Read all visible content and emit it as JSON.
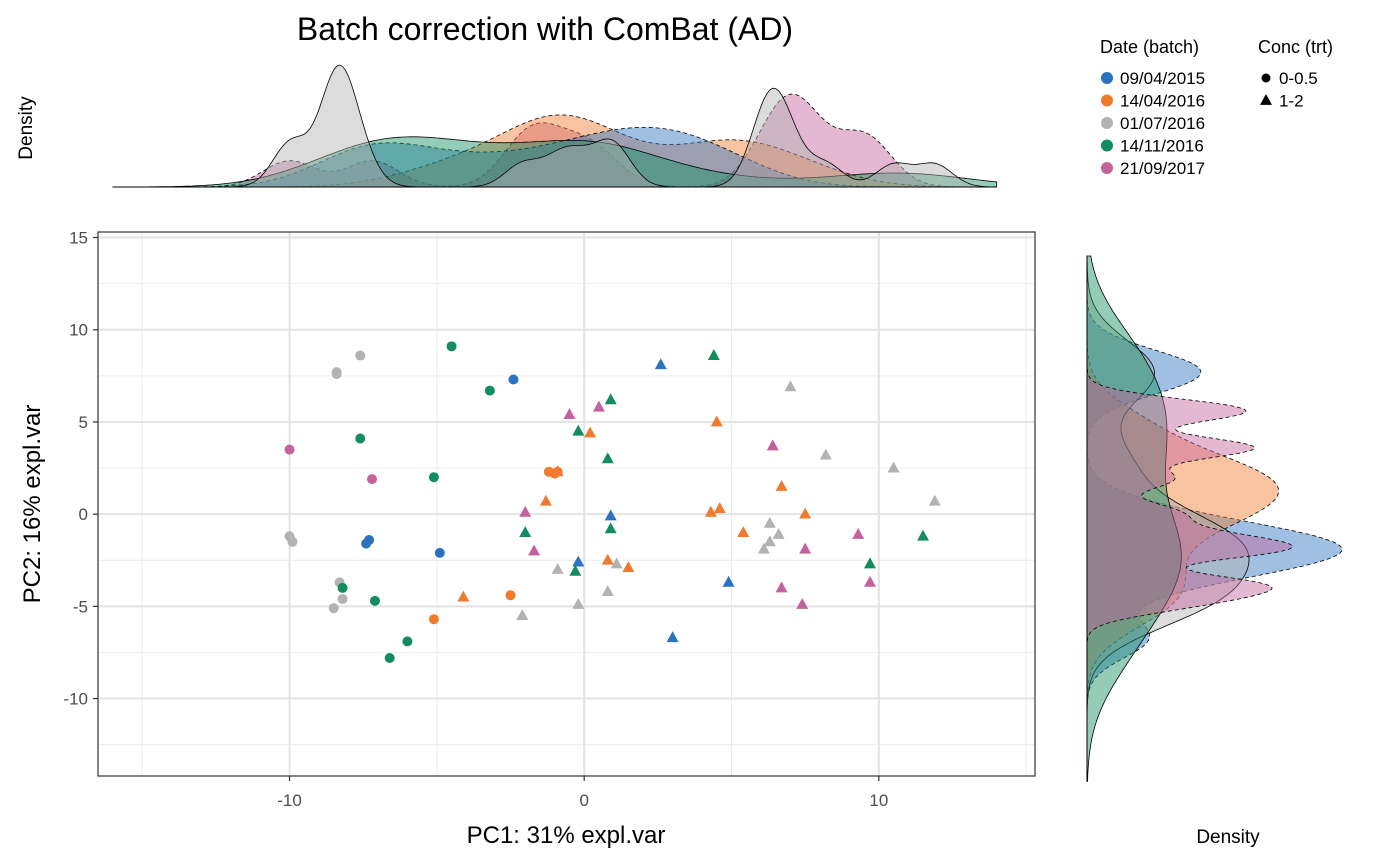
{
  "chart_data": {
    "type": "scatter",
    "title": "Batch correction with ComBat (AD)",
    "xlabel": "PC1: 31% expl.var",
    "ylabel": "PC2: 16% expl.var",
    "xlim": [
      -16.5,
      15.3
    ],
    "ylim": [
      -14.2,
      15.3
    ],
    "xticks": [
      -10,
      0,
      10
    ],
    "xtick_labels": [
      "-10",
      "0",
      "10"
    ],
    "yticks": [
      -10,
      -5,
      0,
      5,
      10,
      15
    ],
    "ytick_labels": [
      "-10",
      "-5",
      "0",
      "5",
      "10",
      "15"
    ],
    "grid": true,
    "legend_position": "top-right",
    "top_density_label": "Density",
    "right_density_label": "Density",
    "color_legend": {
      "title": "Date (batch)",
      "entries": [
        {
          "label": "09/04/2015",
          "color": "#2b73c1"
        },
        {
          "label": "14/04/2016",
          "color": "#ee7b2e"
        },
        {
          "label": "01/07/2016",
          "color": "#b2b2b2"
        },
        {
          "label": "14/11/2016",
          "color": "#138d5f"
        },
        {
          "label": "21/09/2017",
          "color": "#c4629c"
        }
      ]
    },
    "shape_legend": {
      "title": "Conc (trt)",
      "entries": [
        {
          "label": "0-0.5",
          "shape": "circle"
        },
        {
          "label": "1-2",
          "shape": "triangle"
        }
      ]
    },
    "series": [
      {
        "batch": 0,
        "shape": "circle",
        "points": [
          [
            -2.4,
            7.3
          ],
          [
            -7.3,
            -1.4
          ],
          [
            -7.4,
            -1.6
          ],
          [
            -4.9,
            -2.1
          ]
        ]
      },
      {
        "batch": 0,
        "shape": "triangle",
        "points": [
          [
            2.6,
            8.1
          ],
          [
            0.9,
            -0.1
          ],
          [
            -0.2,
            -2.6
          ],
          [
            4.9,
            -3.7
          ],
          [
            3.0,
            -6.7
          ]
        ]
      },
      {
        "batch": 1,
        "shape": "circle",
        "points": [
          [
            -1.2,
            2.3
          ],
          [
            -0.9,
            2.3
          ],
          [
            -1.0,
            2.2
          ],
          [
            -5.1,
            -5.7
          ],
          [
            -2.5,
            -4.4
          ]
        ]
      },
      {
        "batch": 1,
        "shape": "triangle",
        "points": [
          [
            0.2,
            4.4
          ],
          [
            -0.9,
            2.3
          ],
          [
            -1.3,
            0.7
          ],
          [
            4.5,
            5.0
          ],
          [
            6.7,
            1.5
          ],
          [
            4.6,
            0.3
          ],
          [
            4.3,
            0.1
          ],
          [
            7.5,
            0.0
          ],
          [
            5.4,
            -1.0
          ],
          [
            0.8,
            -2.5
          ],
          [
            1.5,
            -2.9
          ],
          [
            -4.1,
            -4.5
          ]
        ]
      },
      {
        "batch": 2,
        "shape": "circle",
        "points": [
          [
            -7.6,
            8.6
          ],
          [
            -8.4,
            7.7
          ],
          [
            -8.4,
            7.6
          ],
          [
            -10.0,
            -1.2
          ],
          [
            -9.9,
            -1.5
          ],
          [
            -8.3,
            -3.7
          ],
          [
            -8.2,
            -4.6
          ],
          [
            -8.5,
            -5.1
          ]
        ]
      },
      {
        "batch": 2,
        "shape": "triangle",
        "points": [
          [
            7.0,
            6.9
          ],
          [
            8.2,
            3.2
          ],
          [
            10.5,
            2.5
          ],
          [
            11.9,
            0.7
          ],
          [
            6.3,
            -0.5
          ],
          [
            6.6,
            -1.1
          ],
          [
            6.3,
            -1.5
          ],
          [
            6.1,
            -1.9
          ],
          [
            1.1,
            -2.7
          ],
          [
            -0.9,
            -3.0
          ],
          [
            0.8,
            -4.2
          ],
          [
            -0.2,
            -4.9
          ],
          [
            -2.1,
            -5.5
          ]
        ]
      },
      {
        "batch": 3,
        "shape": "circle",
        "points": [
          [
            -4.5,
            9.1
          ],
          [
            -3.2,
            6.7
          ],
          [
            -7.6,
            4.1
          ],
          [
            -5.1,
            2.0
          ],
          [
            -8.2,
            -4.0
          ],
          [
            -7.1,
            -4.7
          ],
          [
            -6.0,
            -6.9
          ],
          [
            -6.6,
            -7.8
          ]
        ]
      },
      {
        "batch": 3,
        "shape": "triangle",
        "points": [
          [
            4.4,
            8.6
          ],
          [
            0.9,
            6.2
          ],
          [
            -0.2,
            4.5
          ],
          [
            0.8,
            3.0
          ],
          [
            -2.0,
            -1.0
          ],
          [
            0.9,
            -0.8
          ],
          [
            -0.3,
            -3.1
          ],
          [
            9.7,
            -2.7
          ],
          [
            11.5,
            -1.2
          ]
        ]
      },
      {
        "batch": 4,
        "shape": "circle",
        "points": [
          [
            -10.0,
            3.5
          ],
          [
            -7.2,
            1.9
          ]
        ]
      },
      {
        "batch": 4,
        "shape": "triangle",
        "points": [
          [
            -0.5,
            5.4
          ],
          [
            0.5,
            5.8
          ],
          [
            6.4,
            3.7
          ],
          [
            -2.0,
            0.1
          ],
          [
            -1.7,
            -2.0
          ],
          [
            9.3,
            -1.1
          ],
          [
            7.5,
            -1.9
          ],
          [
            9.7,
            -3.7
          ],
          [
            6.7,
            -4.0
          ],
          [
            7.4,
            -4.9
          ]
        ]
      }
    ]
  }
}
